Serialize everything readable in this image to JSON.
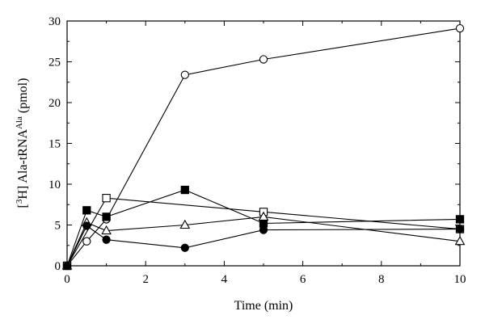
{
  "chart_data": {
    "type": "line",
    "xlabel": "Time (min)",
    "ylabel": {
      "bracket_open": "[",
      "sup1": "3",
      "mid": "H] Ala-tRNA",
      "sup2": "Ala",
      "end": " (pmol)"
    },
    "xlim": [
      0,
      10
    ],
    "ylim": [
      0,
      30
    ],
    "xticks": [
      0,
      2,
      4,
      6,
      8,
      10
    ],
    "yticks": [
      0,
      5,
      10,
      15,
      20,
      25,
      30
    ],
    "grid": false,
    "legend": "none",
    "series": [
      {
        "marker": "open-circle",
        "points": [
          [
            0,
            0
          ],
          [
            0.5,
            3.0
          ],
          [
            1,
            5.7
          ],
          [
            3,
            23.4
          ],
          [
            5,
            25.3
          ],
          [
            10,
            29.1
          ]
        ]
      },
      {
        "marker": "filled-square",
        "points": [
          [
            0,
            0
          ],
          [
            0.5,
            6.8
          ],
          [
            1,
            6.0
          ],
          [
            3,
            9.3
          ],
          [
            5,
            5.2
          ],
          [
            10,
            5.7
          ]
        ]
      },
      {
        "marker": "open-square",
        "points": [
          [
            0,
            0
          ],
          [
            1,
            8.3
          ],
          [
            5,
            6.6
          ],
          [
            10,
            4.5
          ]
        ]
      },
      {
        "marker": "open-triangle",
        "points": [
          [
            0,
            0
          ],
          [
            0.5,
            5.3
          ],
          [
            1,
            4.3
          ],
          [
            3,
            5.0
          ],
          [
            5,
            6.0
          ],
          [
            10,
            3.0
          ]
        ]
      },
      {
        "marker": "filled-circle",
        "points": [
          [
            0,
            0
          ],
          [
            0.5,
            4.9
          ],
          [
            1,
            3.2
          ],
          [
            3,
            2.2
          ],
          [
            5,
            4.4
          ],
          [
            10,
            4.5
          ]
        ]
      }
    ]
  }
}
